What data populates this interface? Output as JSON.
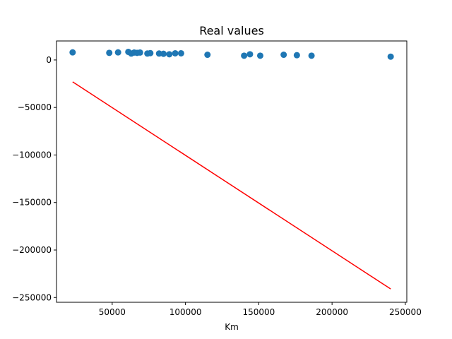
{
  "chart_data": {
    "type": "scatter",
    "title": "Real values",
    "xlabel": "Km",
    "ylabel": "",
    "xlim": [
      12000,
      251000
    ],
    "ylim": [
      -255000,
      20000
    ],
    "xticks": [
      50000,
      100000,
      150000,
      200000,
      250000
    ],
    "xtick_labels": [
      "50000",
      "100000",
      "150000",
      "200000",
      "250000"
    ],
    "yticks": [
      0,
      -50000,
      -100000,
      -150000,
      -200000,
      -250000
    ],
    "ytick_labels": [
      "0",
      "−50000",
      "−100000",
      "−150000",
      "−200000",
      "−250000"
    ],
    "grid": false,
    "legend": false,
    "scatter_color": "#1f77b4",
    "line_color": "#ff0000",
    "points": [
      {
        "x": 23000,
        "y": 8000
      },
      {
        "x": 48000,
        "y": 7500
      },
      {
        "x": 54000,
        "y": 8000
      },
      {
        "x": 61000,
        "y": 8500
      },
      {
        "x": 63000,
        "y": 6800
      },
      {
        "x": 65000,
        "y": 7800
      },
      {
        "x": 67000,
        "y": 7500
      },
      {
        "x": 69000,
        "y": 7800
      },
      {
        "x": 74000,
        "y": 6800
      },
      {
        "x": 76000,
        "y": 7200
      },
      {
        "x": 82000,
        "y": 6800
      },
      {
        "x": 85000,
        "y": 6500
      },
      {
        "x": 89000,
        "y": 6000
      },
      {
        "x": 93000,
        "y": 7000
      },
      {
        "x": 97000,
        "y": 7000
      },
      {
        "x": 115000,
        "y": 5500
      },
      {
        "x": 140000,
        "y": 4500
      },
      {
        "x": 144000,
        "y": 6000
      },
      {
        "x": 151000,
        "y": 4500
      },
      {
        "x": 167000,
        "y": 5500
      },
      {
        "x": 176000,
        "y": 5000
      },
      {
        "x": 186000,
        "y": 4500
      },
      {
        "x": 240000,
        "y": 3500
      }
    ],
    "regression_line": {
      "x": [
        23000,
        240000
      ],
      "y": [
        -23000,
        -241000
      ]
    }
  }
}
